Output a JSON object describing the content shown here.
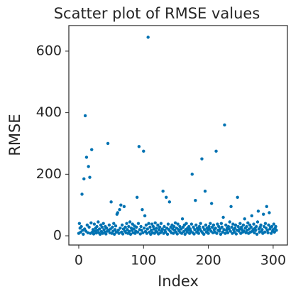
{
  "chart_data": {
    "type": "scatter",
    "title": "Scatter plot of RMSE values",
    "x_label": "Index",
    "y_label": "RMSE",
    "color": "#0072b2",
    "grid": false,
    "xlim": [
      -15.3,
      322
    ],
    "ylim": [
      -30,
      683
    ],
    "xticks": [
      0,
      100,
      200,
      300
    ],
    "yticks": [
      0,
      200,
      400,
      600
    ],
    "x": [
      0,
      1,
      2,
      3,
      4,
      5,
      6,
      7,
      8,
      9,
      10,
      11,
      12,
      13,
      14,
      15,
      16,
      17,
      18,
      19,
      20,
      21,
      22,
      23,
      24,
      25,
      26,
      27,
      28,
      29,
      30,
      31,
      32,
      33,
      34,
      35,
      36,
      37,
      38,
      39,
      40,
      41,
      42,
      43,
      44,
      45,
      46,
      47,
      48,
      49,
      50,
      51,
      52,
      53,
      54,
      55,
      56,
      57,
      58,
      59,
      60,
      61,
      62,
      63,
      64,
      65,
      66,
      67,
      68,
      69,
      70,
      71,
      72,
      73,
      74,
      75,
      76,
      77,
      78,
      79,
      80,
      81,
      82,
      83,
      84,
      85,
      86,
      87,
      88,
      89,
      90,
      91,
      92,
      93,
      94,
      95,
      96,
      97,
      98,
      99,
      100,
      101,
      102,
      103,
      104,
      105,
      106,
      107,
      108,
      109,
      110,
      111,
      112,
      113,
      114,
      115,
      116,
      117,
      118,
      119,
      120,
      121,
      122,
      123,
      124,
      125,
      126,
      127,
      128,
      129,
      130,
      131,
      132,
      133,
      134,
      135,
      136,
      137,
      138,
      139,
      140,
      141,
      142,
      143,
      144,
      145,
      146,
      147,
      148,
      149,
      150,
      151,
      152,
      153,
      154,
      155,
      156,
      157,
      158,
      159,
      160,
      161,
      162,
      163,
      164,
      165,
      166,
      167,
      168,
      169,
      170,
      171,
      172,
      173,
      174,
      175,
      176,
      177,
      178,
      179,
      180,
      181,
      182,
      183,
      184,
      185,
      186,
      187,
      188,
      189,
      190,
      191,
      192,
      193,
      194,
      195,
      196,
      197,
      198,
      199,
      200,
      201,
      202,
      203,
      204,
      205,
      206,
      207,
      208,
      209,
      210,
      211,
      212,
      213,
      214,
      215,
      216,
      217,
      218,
      219,
      220,
      221,
      222,
      223,
      224,
      225,
      226,
      227,
      228,
      229,
      230,
      231,
      232,
      233,
      234,
      235,
      236,
      237,
      238,
      239,
      240,
      241,
      242,
      243,
      244,
      245,
      246,
      247,
      248,
      249,
      250,
      251,
      252,
      253,
      254,
      255,
      256,
      257,
      258,
      259,
      260,
      261,
      262,
      263,
      264,
      265,
      266,
      267,
      268,
      269,
      270,
      271,
      272,
      273,
      274,
      275,
      276,
      277,
      278,
      279,
      280,
      281,
      282,
      283,
      284,
      285,
      286,
      287,
      288,
      289,
      290,
      291,
      292,
      293,
      294,
      295,
      296,
      297,
      298,
      299,
      300,
      301,
      302,
      303,
      304,
      305
    ],
    "values": [
      8,
      40,
      25,
      12,
      30,
      135,
      18,
      5,
      185,
      22,
      390,
      15,
      255,
      35,
      10,
      225,
      28,
      190,
      8,
      42,
      280,
      12,
      20,
      6,
      38,
      15,
      25,
      9,
      30,
      18,
      45,
      10,
      22,
      5,
      35,
      14,
      28,
      8,
      40,
      20,
      12,
      30,
      6,
      25,
      15,
      300,
      18,
      35,
      10,
      22,
      110,
      8,
      28,
      15,
      40,
      5,
      20,
      32,
      12,
      70,
      75,
      18,
      8,
      85,
      25,
      100,
      12,
      35,
      6,
      22,
      95,
      15,
      28,
      10,
      40,
      20,
      8,
      30,
      14,
      45,
      5,
      25,
      18,
      38,
      10,
      22,
      32,
      8,
      15,
      28,
      125,
      12,
      40,
      290,
      20,
      6,
      30,
      18,
      85,
      10,
      275,
      25,
      65,
      14,
      35,
      8,
      22,
      645,
      40,
      12,
      28,
      5,
      18,
      38,
      10,
      30,
      22,
      8,
      42,
      15,
      25,
      12,
      35,
      6,
      20,
      28,
      10,
      40,
      15,
      22,
      145,
      8,
      30,
      18,
      12,
      125,
      25,
      5,
      38,
      20,
      110,
      15,
      28,
      10,
      35,
      22,
      8,
      30,
      18,
      42,
      12,
      25,
      6,
      38,
      20,
      15,
      30,
      10,
      22,
      8,
      55,
      28,
      14,
      35,
      5,
      20,
      40,
      12,
      25,
      18,
      30,
      8,
      22,
      15,
      38,
      200,
      10,
      28,
      6,
      20,
      115,
      35,
      12,
      25,
      18,
      8,
      30,
      22,
      40,
      15,
      250,
      10,
      28,
      5,
      20,
      145,
      35,
      12,
      25,
      18,
      8,
      30,
      22,
      40,
      15,
      105,
      28,
      10,
      35,
      20,
      12,
      25,
      275,
      8,
      38,
      18,
      30,
      15,
      22,
      5,
      40,
      28,
      12,
      60,
      20,
      360,
      8,
      35,
      18,
      25,
      10,
      30,
      22,
      45,
      15,
      95,
      28,
      8,
      38,
      20,
      12,
      25,
      35,
      6,
      18,
      125,
      30,
      15,
      22,
      40,
      8,
      28,
      20,
      12,
      35,
      15,
      55,
      25,
      10,
      30,
      18,
      42,
      8,
      22,
      35,
      12,
      28,
      65,
      15,
      20,
      38,
      10,
      25,
      18,
      30,
      5,
      45,
      80,
      22,
      12,
      28,
      35,
      15,
      20,
      8,
      70,
      30,
      12,
      40,
      25,
      95,
      18,
      10,
      35,
      75,
      22,
      28,
      8,
      30,
      15,
      20,
      38,
      12,
      25,
      30,
      18
    ]
  }
}
